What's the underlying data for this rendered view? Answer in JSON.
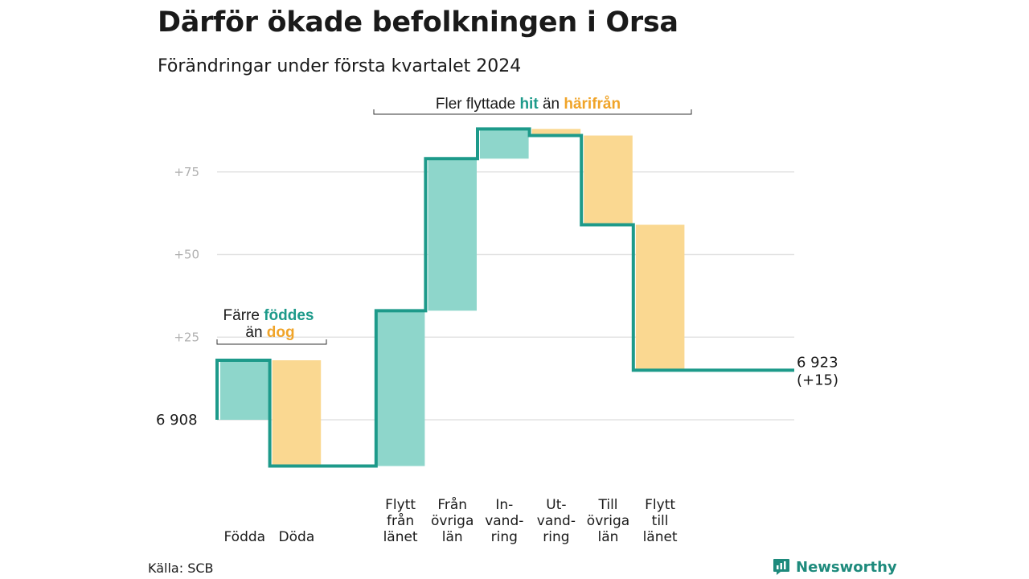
{
  "title": "Därför ökade befolkningen i Orsa",
  "subtitle": "Förändringar under första kvartalet 2024",
  "source": "Källa: SCB",
  "brand": "Newsworthy",
  "colors": {
    "increase": "#8ed6cb",
    "decrease": "#fad891",
    "line": "#1d9a8a",
    "teal_text": "#1d9a8a",
    "orange_text": "#f0a429",
    "grid": "#e3e3e3"
  },
  "chart_data": {
    "type": "waterfall",
    "start_value": 6908,
    "end_value": "6 923",
    "end_change": "(+15)",
    "start_label": "6  908",
    "y_ticks": [
      {
        "value": 25,
        "label": "+25"
      },
      {
        "value": 50,
        "label": "+50"
      },
      {
        "value": 75,
        "label": "+75"
      }
    ],
    "ylim": [
      -20,
      90
    ],
    "grid": true,
    "steps": [
      {
        "category": [
          "Födda"
        ],
        "change": 18
      },
      {
        "category": [
          "Döda"
        ],
        "change": -32
      },
      {
        "category": [
          "Flytt",
          "från",
          "länet"
        ],
        "change": 47
      },
      {
        "category": [
          "Från",
          "övriga",
          "län"
        ],
        "change": 46
      },
      {
        "category": [
          "In-",
          "vand-",
          "ring"
        ],
        "change": 9
      },
      {
        "category": [
          "Ut-",
          "vand-",
          "ring"
        ],
        "change": -2
      },
      {
        "category": [
          "Till",
          "övriga",
          "län"
        ],
        "change": -27
      },
      {
        "category": [
          "Flytt",
          "till",
          "länet"
        ],
        "change": -44
      }
    ],
    "annotations": {
      "births": {
        "line1_prefix": "Färre",
        "line1_highlight": "föddes",
        "line2_prefix": "än",
        "line2_highlight": "dog"
      },
      "migration": {
        "prefix": "Fler flyttade",
        "highlight1": "hit",
        "middle": "än",
        "highlight2": "härifrån"
      }
    }
  }
}
